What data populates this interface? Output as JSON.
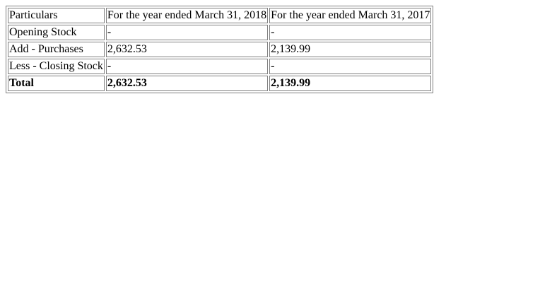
{
  "table": {
    "header": [
      "Particulars",
      "For the year ended March 31, 2018",
      "For the year ended March 31, 2017"
    ],
    "rows": [
      [
        "Opening Stock",
        "-",
        "-"
      ],
      [
        "Add - Purchases",
        "2,632.53",
        "2,139.99"
      ],
      [
        "Less - Closing Stock",
        "-",
        "-"
      ]
    ],
    "total": [
      "Total",
      "2,632.53",
      "2,139.99"
    ]
  }
}
